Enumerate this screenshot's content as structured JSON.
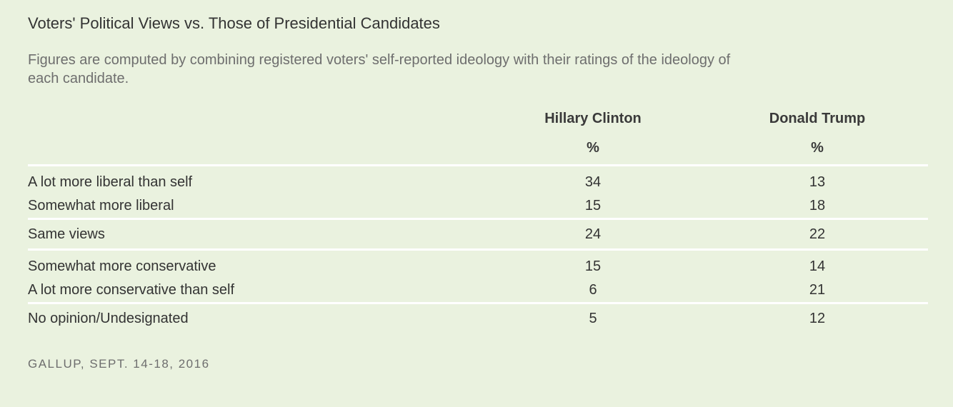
{
  "chart_data": {
    "type": "table",
    "title": "Voters' Political Views vs. Those of Presidential Candidates",
    "subtitle": "Figures are computed by combining registered voters' self-reported ideology with their ratings of the ideology of each candidate.",
    "columns": [
      "Hillary Clinton",
      "Donald Trump"
    ],
    "unit": "%",
    "rows": [
      {
        "label": "A lot more liberal than self",
        "values": [
          "34",
          "13"
        ]
      },
      {
        "label": "Somewhat more liberal",
        "values": [
          "15",
          "18"
        ]
      },
      {
        "label": "Same views",
        "values": [
          "24",
          "22"
        ]
      },
      {
        "label": "Somewhat more conservative",
        "values": [
          "15",
          "14"
        ]
      },
      {
        "label": "A lot more conservative than self",
        "values": [
          "6",
          "21"
        ]
      },
      {
        "label": "No opinion/Undesignated",
        "values": [
          "5",
          "12"
        ]
      }
    ],
    "source": "GALLUP, SEPT. 14-18, 2016"
  }
}
